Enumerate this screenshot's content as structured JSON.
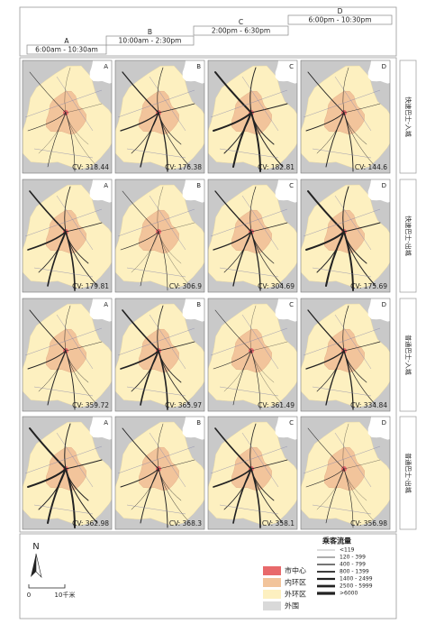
{
  "header": {
    "periods": [
      {
        "letter": "A",
        "time": "6:00am - 10:30am"
      },
      {
        "letter": "B",
        "time": "10:00am - 2:30pm"
      },
      {
        "letter": "C",
        "time": "2:00pm - 6:30pm"
      },
      {
        "letter": "D",
        "time": "6:00pm - 10:30pm"
      }
    ]
  },
  "rows": [
    {
      "label": "快速巴士-入城",
      "panels": [
        {
          "letter": "A",
          "cv": "CV: 318.44"
        },
        {
          "letter": "B",
          "cv": "CV: 176.38"
        },
        {
          "letter": "C",
          "cv": "CV: 182.81"
        },
        {
          "letter": "D",
          "cv": "CV: 144.6"
        }
      ]
    },
    {
      "label": "快速巴士-出城",
      "panels": [
        {
          "letter": "A",
          "cv": "CV: 179.81"
        },
        {
          "letter": "B",
          "cv": "CV: 306.9"
        },
        {
          "letter": "C",
          "cv": "CV: 304.69"
        },
        {
          "letter": "D",
          "cv": "CV: 175.69"
        }
      ]
    },
    {
      "label": "普通巴士-入城",
      "panels": [
        {
          "letter": "A",
          "cv": "CV: 359.72"
        },
        {
          "letter": "B",
          "cv": "CV: 365.97"
        },
        {
          "letter": "C",
          "cv": "CV: 361.49"
        },
        {
          "letter": "D",
          "cv": "CV: 334.84"
        }
      ]
    },
    {
      "label": "普通巴士-出城",
      "panels": [
        {
          "letter": "A",
          "cv": "CV: 362.98"
        },
        {
          "letter": "B",
          "cv": "CV: 368.3"
        },
        {
          "letter": "C",
          "cv": "CV: 358.1"
        },
        {
          "letter": "D",
          "cv": "CV: 356.98"
        }
      ]
    }
  ],
  "legend": {
    "north": "N",
    "scale_start": "0",
    "scale_end": "10千米",
    "zones": [
      {
        "label": "市中心",
        "color": "#e8696b"
      },
      {
        "label": "内环区",
        "color": "#f2c49b"
      },
      {
        "label": "外环区",
        "color": "#fdf0c0"
      },
      {
        "label": "外围",
        "color": "#d9d9d9"
      }
    ],
    "flow_title": "乘客流量",
    "flows": [
      "<119",
      "120 - 399",
      "400 - 799",
      "800 - 1399",
      "1400 - 2499",
      "2500 - 5999",
      ">6000"
    ]
  }
}
